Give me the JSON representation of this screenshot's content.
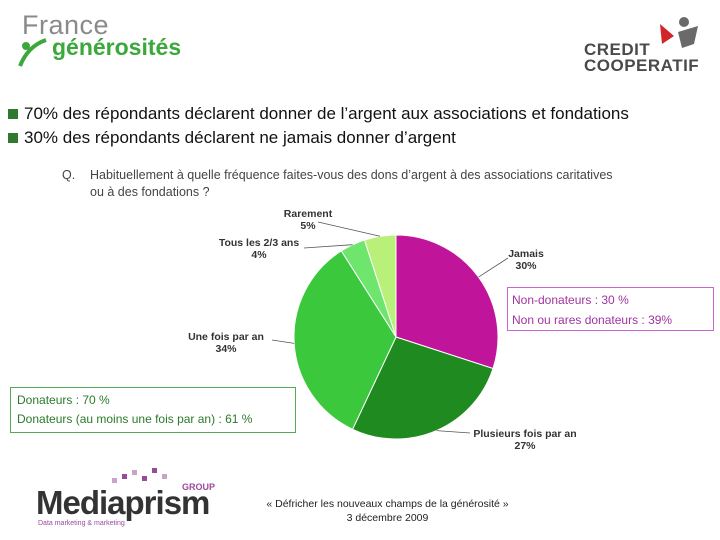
{
  "header": {
    "logo_left_line1": "France",
    "logo_left_line2": "générosités",
    "logo_right_line1": "CREDIT",
    "logo_right_line2": "COOPERATIF"
  },
  "bullets": [
    "70% des répondants déclarent donner de l’argent aux associations et fondations",
    "30% des répondants déclarent ne jamais donner d’argent"
  ],
  "question": {
    "label": "Q.",
    "text": "Habituellement à quelle fréquence faites-vous des dons d’argent à des associations caritatives ou à des fondations ?"
  },
  "chart_data": {
    "type": "pie",
    "slices": [
      {
        "name": "Jamais",
        "value": 30,
        "label": "30%",
        "color": "#c0159b"
      },
      {
        "name": "Plusieurs fois par an",
        "value": 27,
        "label": "27%",
        "color": "#1f8a1f"
      },
      {
        "name": "Une fois par an",
        "value": 34,
        "label": "34%",
        "color": "#3cc83c"
      },
      {
        "name": "Tous les 2/3 ans",
        "value": 4,
        "label": "4%",
        "color": "#6ee66e"
      },
      {
        "name": "Rarement",
        "value": 5,
        "label": "5%",
        "color": "#b8f07a"
      }
    ]
  },
  "boxes": {
    "non_donateurs_line1": "Non-donateurs : 30 %",
    "non_donateurs_line2": "Non ou rares donateurs : 39%",
    "donateurs_line1": "Donateurs : 70 %",
    "donateurs_line2": "Donateurs (au moins une fois par an) : 61 %"
  },
  "footer": {
    "line1": "« Défricher les nouveaux champs de la générosité »",
    "line2": "3 décembre 2009",
    "logo_text": "Mediaprism",
    "logo_group": "GROUP",
    "logo_tagline": "Data marketing & marketing"
  },
  "colors": {
    "leader": "#555555"
  }
}
